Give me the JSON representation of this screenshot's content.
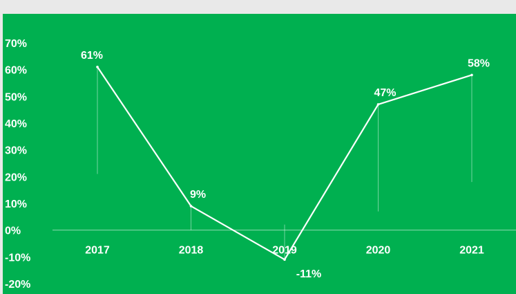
{
  "colors": {
    "frame": "#e9e9e9",
    "background": "#00b050",
    "line": "#ffffff",
    "text": "#ffffff"
  },
  "chart_data": {
    "type": "line",
    "title": "",
    "xlabel": "",
    "ylabel": "",
    "categories": [
      "2017",
      "2018",
      "2019",
      "2020",
      "2021"
    ],
    "series": [
      {
        "values": [
          61,
          9,
          -11,
          47,
          58
        ]
      }
    ],
    "data_labels": [
      "61%",
      "9%",
      "-11%",
      "47%",
      "58%"
    ],
    "y_ticks": [
      "70%",
      "60%",
      "50%",
      "40%",
      "30%",
      "20%",
      "10%",
      "0%",
      "-10%",
      "-20%"
    ],
    "y_tick_values": [
      70,
      60,
      50,
      40,
      30,
      20,
      10,
      0,
      -10,
      -20
    ],
    "ylim": [
      -20,
      70
    ],
    "grid": false,
    "legend": "none",
    "drop_lines": true
  }
}
